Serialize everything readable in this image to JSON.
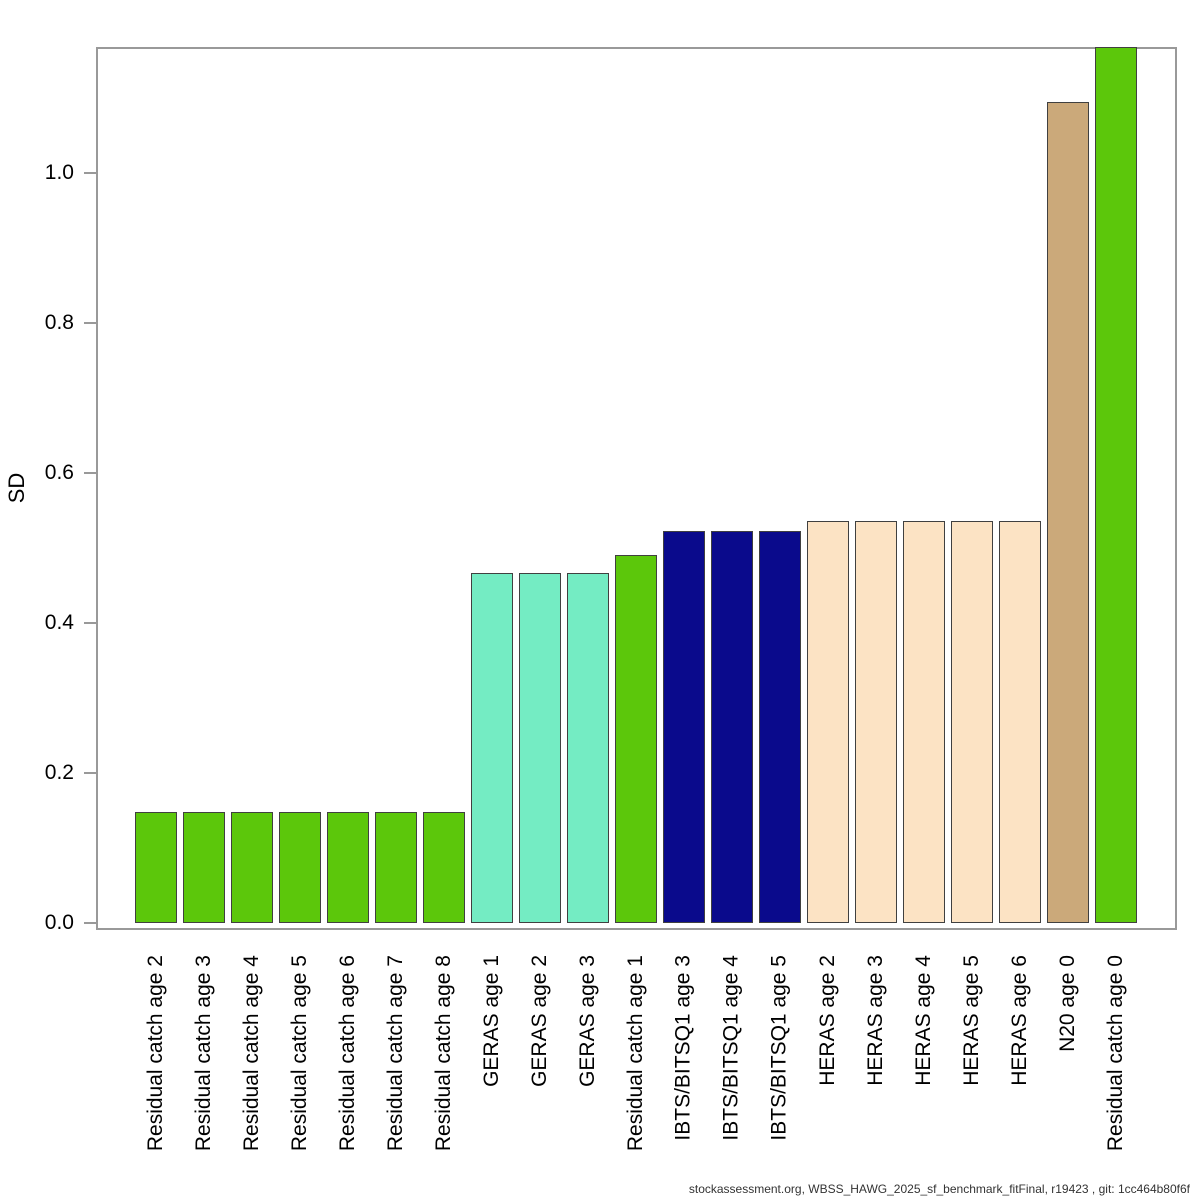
{
  "chart_data": {
    "type": "bar",
    "title": "",
    "xlabel": "",
    "ylabel": "SD",
    "ylim": [
      0,
      1.17
    ],
    "grid": false,
    "legend": "none",
    "footer": "stockassessment.org, WBSS_HAWG_2025_sf_benchmark_fitFinal, r19423 , git: 1cc464b80f6f",
    "yticks": [
      {
        "label": "0.0",
        "value": 0.0
      },
      {
        "label": "0.2",
        "value": 0.2
      },
      {
        "label": "0.4",
        "value": 0.4
      },
      {
        "label": "0.6",
        "value": 0.6
      },
      {
        "label": "0.8",
        "value": 0.8
      },
      {
        "label": "1.0",
        "value": 1.0
      }
    ],
    "colors": {
      "residual_catch": "#5CC70B",
      "geras": "#74ECC3",
      "ibts_bitsq1": "#0A0A8C",
      "heras": "#FCE3C4",
      "n20": "#CBA97A",
      "frame": "#999999",
      "bar_border": "#404040"
    },
    "bars": [
      {
        "label": "Residual catch age 2",
        "value": 0.148,
        "fleet": "residual_catch"
      },
      {
        "label": "Residual catch age 3",
        "value": 0.148,
        "fleet": "residual_catch"
      },
      {
        "label": "Residual catch age 4",
        "value": 0.148,
        "fleet": "residual_catch"
      },
      {
        "label": "Residual catch age 5",
        "value": 0.148,
        "fleet": "residual_catch"
      },
      {
        "label": "Residual catch age 6",
        "value": 0.148,
        "fleet": "residual_catch"
      },
      {
        "label": "Residual catch age 7",
        "value": 0.148,
        "fleet": "residual_catch"
      },
      {
        "label": "Residual catch age 8",
        "value": 0.148,
        "fleet": "residual_catch"
      },
      {
        "label": "GERAS age 1",
        "value": 0.467,
        "fleet": "geras"
      },
      {
        "label": "GERAS age 2",
        "value": 0.467,
        "fleet": "geras"
      },
      {
        "label": "GERAS age 3",
        "value": 0.467,
        "fleet": "geras"
      },
      {
        "label": "Residual catch age 1",
        "value": 0.491,
        "fleet": "residual_catch"
      },
      {
        "label": "IBTS/BITSQ1 age 3",
        "value": 0.523,
        "fleet": "ibts_bitsq1"
      },
      {
        "label": "IBTS/BITSQ1 age 4",
        "value": 0.523,
        "fleet": "ibts_bitsq1"
      },
      {
        "label": "IBTS/BITSQ1 age 5",
        "value": 0.523,
        "fleet": "ibts_bitsq1"
      },
      {
        "label": "HERAS age 2",
        "value": 0.536,
        "fleet": "heras"
      },
      {
        "label": "HERAS age 3",
        "value": 0.536,
        "fleet": "heras"
      },
      {
        "label": "HERAS age 4",
        "value": 0.536,
        "fleet": "heras"
      },
      {
        "label": "HERAS age 5",
        "value": 0.536,
        "fleet": "heras"
      },
      {
        "label": "HERAS age 6",
        "value": 0.536,
        "fleet": "heras"
      },
      {
        "label": "N20 age 0",
        "value": 1.095,
        "fleet": "n20"
      },
      {
        "label": "Residual catch age 0",
        "value": 1.168,
        "fleet": "residual_catch"
      }
    ]
  }
}
